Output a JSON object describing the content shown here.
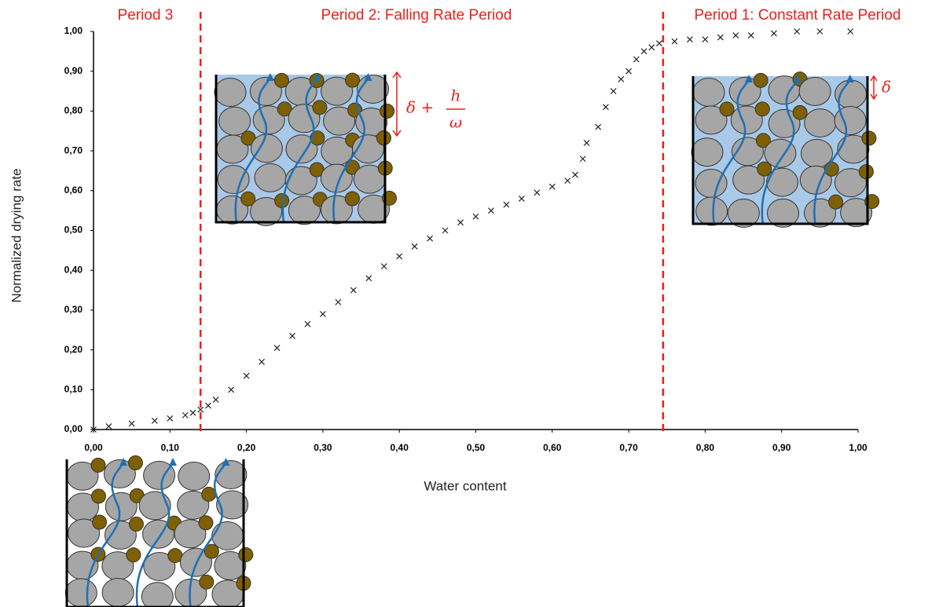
{
  "chart_data": {
    "type": "scatter",
    "x_label": "Water content",
    "y_label": "Normalized drying rate",
    "xlim": [
      0,
      1
    ],
    "ylim": [
      0,
      1
    ],
    "xticks": [
      {
        "value": 0,
        "label": "0,00"
      },
      {
        "value": 0.1,
        "label": "0,10"
      },
      {
        "value": 0.2,
        "label": "0,20"
      },
      {
        "value": 0.3,
        "label": "0,30"
      },
      {
        "value": 0.4,
        "label": "0,40"
      },
      {
        "value": 0.5,
        "label": "0,50"
      },
      {
        "value": 0.6,
        "label": "0,60"
      },
      {
        "value": 0.7,
        "label": "0,70"
      },
      {
        "value": 0.8,
        "label": "0,80"
      },
      {
        "value": 0.9,
        "label": "0,90"
      },
      {
        "value": 1,
        "label": "1,00"
      }
    ],
    "yticks": [
      {
        "value": 0,
        "label": "0,00"
      },
      {
        "value": 0.1,
        "label": "0,10"
      },
      {
        "value": 0.2,
        "label": "0,20"
      },
      {
        "value": 0.3,
        "label": "0,30"
      },
      {
        "value": 0.4,
        "label": "0,40"
      },
      {
        "value": 0.5,
        "label": "0,50"
      },
      {
        "value": 0.6,
        "label": "0,60"
      },
      {
        "value": 0.7,
        "label": "0,70"
      },
      {
        "value": 0.8,
        "label": "0,80"
      },
      {
        "value": 0.9,
        "label": "0,90"
      },
      {
        "value": 1,
        "label": "1,00"
      }
    ],
    "series": [
      {
        "color": "#222222",
        "x": [
          0,
          0.02,
          0.05,
          0.08,
          0.1,
          0.12,
          0.13,
          0.14,
          0.15,
          0.16,
          0.18,
          0.2,
          0.22,
          0.24,
          0.26,
          0.28,
          0.3,
          0.32,
          0.34,
          0.36,
          0.38,
          0.4,
          0.42,
          0.44,
          0.46,
          0.48,
          0.5,
          0.52,
          0.54,
          0.56,
          0.58,
          0.6,
          0.62,
          0.63,
          0.64,
          0.645,
          0.66,
          0.67,
          0.68,
          0.69,
          0.7,
          0.71,
          0.72,
          0.73,
          0.74,
          0.76,
          0.78,
          0.8,
          0.82,
          0.84,
          0.86,
          0.89,
          0.92,
          0.95,
          0.99
        ],
        "y": [
          0,
          0.008,
          0.015,
          0.022,
          0.028,
          0.036,
          0.042,
          0.05,
          0.06,
          0.075,
          0.1,
          0.135,
          0.17,
          0.205,
          0.235,
          0.265,
          0.29,
          0.32,
          0.35,
          0.38,
          0.41,
          0.435,
          0.46,
          0.48,
          0.5,
          0.52,
          0.535,
          0.55,
          0.565,
          0.58,
          0.595,
          0.61,
          0.625,
          0.64,
          0.68,
          0.72,
          0.76,
          0.81,
          0.85,
          0.88,
          0.9,
          0.93,
          0.95,
          0.96,
          0.97,
          0.975,
          0.98,
          0.98,
          0.985,
          0.99,
          0.99,
          0.995,
          1,
          1,
          1
        ]
      }
    ],
    "period_lines": {
      "color": "#e8221a",
      "x": [
        0.14,
        0.745
      ]
    },
    "period_labels": [
      "Period 3",
      "Period 2: Falling Rate Period",
      "Period 1: Constant Rate Period"
    ],
    "inset_labels": {
      "falling_term": "δ +",
      "falling_numerator": "h",
      "falling_denominator": "ω",
      "constant": "δ"
    }
  }
}
